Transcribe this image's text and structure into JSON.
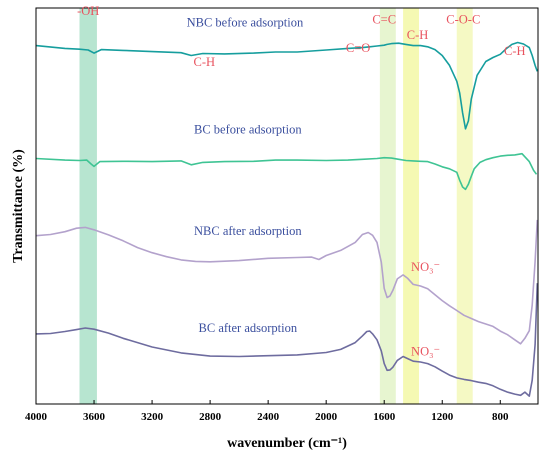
{
  "chart_data": {
    "type": "line",
    "title": "",
    "xlabel": "wavenumber (cm⁻¹)",
    "ylabel": "Transmittance (%)",
    "xlim": [
      4000,
      540
    ],
    "x_reversed": true,
    "x_ticks": [
      "4000",
      "3600",
      "3200",
      "2800",
      "2400",
      "2000",
      "1600",
      "1200",
      "800"
    ],
    "x_tick_values": [
      4000,
      3600,
      3200,
      2800,
      2400,
      2000,
      1600,
      1200,
      800
    ],
    "ylim": [
      0,
      100
    ],
    "y_ticks_shown": false,
    "grid": false,
    "bands": [
      {
        "from": 3700,
        "to": 3580,
        "color": "#9fdcc0"
      },
      {
        "from": 1630,
        "to": 1520,
        "color": "#dff2c0"
      },
      {
        "from": 1470,
        "to": 1360,
        "color": "#f2f79a"
      },
      {
        "from": 1100,
        "to": 990,
        "color": "#f2f7b0"
      }
    ],
    "series": [
      {
        "name": "NBC before adsorption",
        "color": "#169e9e",
        "x": [
          4000,
          3800,
          3700,
          3640,
          3600,
          3550,
          3400,
          3200,
          3000,
          2930,
          2850,
          2700,
          2500,
          2350,
          2200,
          2000,
          1850,
          1750,
          1700,
          1650,
          1600,
          1580,
          1550,
          1500,
          1450,
          1400,
          1350,
          1300,
          1250,
          1200,
          1150,
          1100,
          1080,
          1060,
          1040,
          1020,
          1000,
          960,
          900,
          850,
          800,
          760,
          720,
          680,
          640,
          600,
          580,
          560,
          545
        ],
        "y": [
          90.5,
          89.8,
          89.6,
          89.4,
          88.6,
          89.5,
          89.3,
          89.0,
          88.7,
          88.0,
          88.5,
          88.4,
          88.6,
          88.9,
          88.9,
          89.4,
          89.8,
          90.0,
          90.2,
          90.4,
          90.6,
          90.8,
          91.0,
          91.1,
          90.8,
          90.5,
          90.5,
          90.2,
          89.5,
          88.0,
          85.5,
          81.5,
          78.5,
          73.5,
          69.5,
          71.5,
          77.0,
          83.0,
          86.5,
          87.5,
          88.3,
          89.7,
          90.8,
          91.3,
          90.9,
          90.0,
          88.0,
          85.5,
          84.0
        ]
      },
      {
        "name": "BC before adsorption",
        "color": "#3fc494",
        "x": [
          4000,
          3800,
          3700,
          3650,
          3620,
          3600,
          3560,
          3400,
          3200,
          3000,
          2930,
          2850,
          2700,
          2500,
          2350,
          2200,
          2000,
          1850,
          1750,
          1650,
          1600,
          1550,
          1500,
          1450,
          1400,
          1350,
          1300,
          1250,
          1200,
          1150,
          1100,
          1080,
          1060,
          1040,
          1020,
          1000,
          980,
          940,
          900,
          850,
          800,
          750,
          700,
          650,
          600,
          570,
          550
        ],
        "y": [
          62.0,
          61.6,
          61.5,
          61.6,
          60.6,
          60.0,
          61.2,
          61.3,
          61.2,
          61.4,
          60.4,
          61.0,
          61.2,
          61.3,
          61.6,
          61.6,
          61.5,
          61.6,
          61.8,
          62.0,
          62.2,
          62.1,
          61.8,
          61.5,
          61.4,
          61.3,
          61.2,
          60.6,
          59.9,
          59.4,
          58.5,
          56.5,
          54.8,
          54.2,
          55.5,
          57.5,
          59.4,
          61.0,
          61.7,
          62.2,
          62.6,
          62.8,
          62.9,
          63.2,
          61.2,
          59.0,
          58.0
        ]
      },
      {
        "name": "NBC after adsorption",
        "color": "#b3a2cc",
        "x": [
          4000,
          3900,
          3800,
          3720,
          3660,
          3600,
          3500,
          3400,
          3300,
          3200,
          3100,
          3000,
          2900,
          2800,
          2600,
          2400,
          2200,
          2100,
          2050,
          2000,
          1900,
          1800,
          1750,
          1710,
          1680,
          1650,
          1620,
          1600,
          1580,
          1560,
          1540,
          1510,
          1470,
          1440,
          1400,
          1350,
          1300,
          1250,
          1200,
          1150,
          1100,
          1050,
          1000,
          950,
          900,
          850,
          800,
          750,
          700,
          660,
          630,
          600,
          580,
          560,
          545
        ],
        "y": [
          42.5,
          42.8,
          43.5,
          44.4,
          44.6,
          44.0,
          42.7,
          41.2,
          39.5,
          38.2,
          37.2,
          36.4,
          36.0,
          35.9,
          36.2,
          36.8,
          37.0,
          37.1,
          36.5,
          37.5,
          38.8,
          40.8,
          42.8,
          43.3,
          42.6,
          40.8,
          35.8,
          29.2,
          26.9,
          27.3,
          28.7,
          31.6,
          32.6,
          31.8,
          30.2,
          29.8,
          29.1,
          27.6,
          26.1,
          24.8,
          23.6,
          22.4,
          21.6,
          20.8,
          20.2,
          19.6,
          18.4,
          17.5,
          16.2,
          15.2,
          16.6,
          18.5,
          25.0,
          36.0,
          46.5
        ]
      },
      {
        "name": "BC after adsorption",
        "color": "#6e6c9f",
        "x": [
          4000,
          3900,
          3800,
          3720,
          3660,
          3600,
          3500,
          3400,
          3200,
          3000,
          2800,
          2600,
          2400,
          2200,
          2000,
          1900,
          1800,
          1750,
          1720,
          1700,
          1680,
          1650,
          1620,
          1600,
          1580,
          1560,
          1540,
          1510,
          1470,
          1440,
          1400,
          1350,
          1300,
          1250,
          1200,
          1150,
          1100,
          1050,
          1000,
          950,
          900,
          850,
          800,
          750,
          700,
          660,
          630,
          600,
          580,
          560,
          545
        ],
        "y": [
          17.7,
          17.8,
          18.3,
          18.8,
          19.2,
          18.9,
          17.9,
          16.6,
          14.4,
          12.9,
          12.1,
          12.0,
          12.2,
          12.4,
          13.0,
          13.8,
          15.5,
          17.2,
          18.3,
          18.4,
          17.7,
          16.2,
          13.4,
          10.2,
          8.5,
          8.6,
          9.3,
          11.0,
          12.0,
          11.5,
          10.8,
          10.6,
          10.2,
          9.4,
          8.3,
          7.3,
          6.6,
          6.2,
          5.9,
          5.5,
          5.2,
          4.6,
          3.7,
          3.0,
          2.5,
          2.2,
          3.0,
          2.0,
          6.0,
          15.0,
          30.5
        ]
      }
    ],
    "series_labels": [
      {
        "text": "NBC before adsorption",
        "x": 2560,
        "y": 95.3
      },
      {
        "text": "BC before adsorption",
        "x": 2540,
        "y": 68.3
      },
      {
        "text": "NBC after adsorption",
        "x": 2540,
        "y": 42.7
      },
      {
        "text": "BC after adsorption",
        "x": 2540,
        "y": 18.2
      }
    ],
    "annotations": [
      {
        "text": "-OH",
        "x": 3640,
        "y": 98.2
      },
      {
        "text": "C-H",
        "x": 2840,
        "y": 85.3
      },
      {
        "text": "C=O",
        "x": 1780,
        "y": 88.9
      },
      {
        "text": "C=C",
        "x": 1600,
        "y": 96.1
      },
      {
        "text": "C-H",
        "x": 1370,
        "y": 92.2
      },
      {
        "text": "C-O-C",
        "x": 1055,
        "y": 96.1
      },
      {
        "text": "C-H",
        "x": 700,
        "y": 88.1
      },
      {
        "text": "NO₃⁻",
        "x": 1315,
        "y": 33.6
      },
      {
        "text": "NO₃⁻",
        "x": 1315,
        "y": 12.2
      }
    ]
  }
}
